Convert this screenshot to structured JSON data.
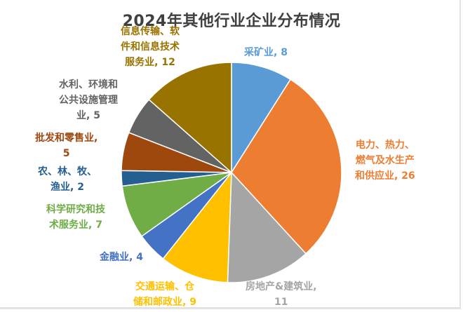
{
  "chart_data": {
    "type": "pie",
    "title": "2024年其他行业企业分布情况",
    "categories": [
      "采矿业",
      "电力、热力、燃气及水生产和供应业",
      "房地产&建筑业",
      "交通运输、仓储和邮政业",
      "金融业",
      "科学研究和技术服务业",
      "农、林、牧、渔业",
      "批发和零售业",
      "水利、环境和公共设施管理业",
      "信息传输、软件和信息技术服务业"
    ],
    "values": [
      8,
      26,
      11,
      9,
      4,
      7,
      2,
      5,
      5,
      12
    ],
    "colors": [
      "#5b9bd5",
      "#ed7d31",
      "#a5a5a5",
      "#ffc000",
      "#4472c4",
      "#70ad47",
      "#255e91",
      "#9e480e",
      "#636363",
      "#997300"
    ],
    "data_labels": true,
    "legend": "none",
    "start_angle": "12 o'clock, clockwise"
  },
  "labels": [
    {
      "text": "采矿业, 8",
      "color": "#5b9bd5"
    },
    {
      "text": "电力、热力、\n燃气及水生产\n和供应业, 26",
      "color": "#ed7d31"
    },
    {
      "text": "房地产&建筑业,\n11",
      "color": "#a5a5a5"
    },
    {
      "text": "交通运输、仓\n储和邮政业, 9",
      "color": "#ffc000"
    },
    {
      "text": "金融业, 4",
      "color": "#4472c4"
    },
    {
      "text": "科学研究和技\n术服务业, 7",
      "color": "#70ad47"
    },
    {
      "text": "农、林、牧、\n渔业, 2",
      "color": "#255e91"
    },
    {
      "text": "批发和零售业,\n5",
      "color": "#9e480e"
    },
    {
      "text": "水利、环境和\n公共设施管理\n业, 5",
      "color": "#636363"
    },
    {
      "text": "信息传输、软\n件和信息技术\n服务业, 12",
      "color": "#997300"
    }
  ]
}
